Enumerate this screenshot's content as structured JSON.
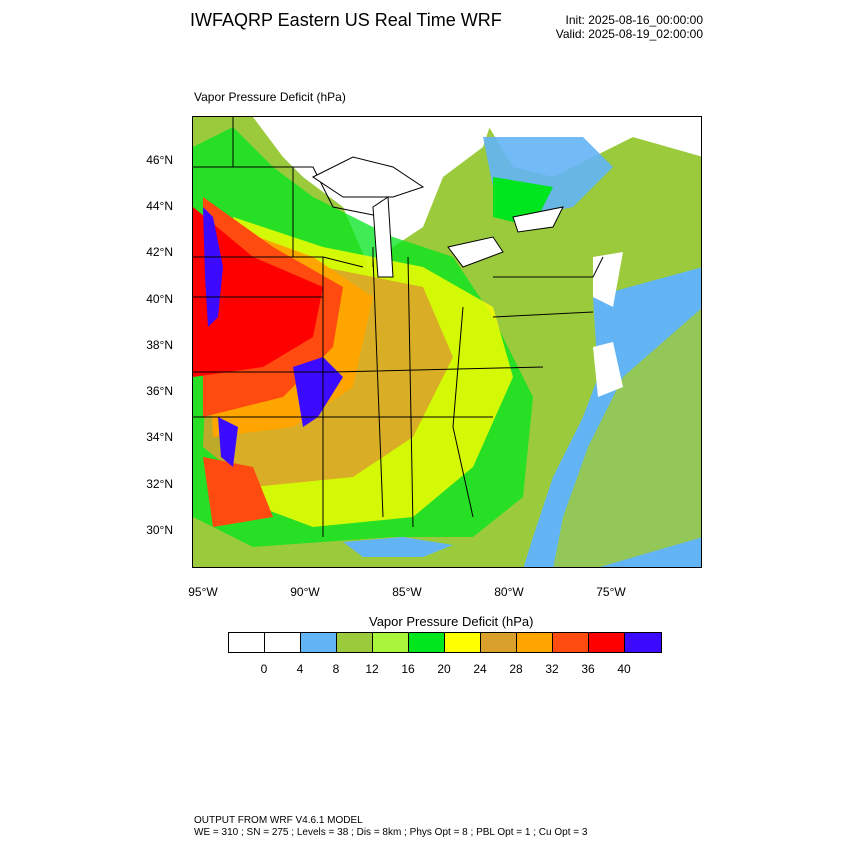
{
  "header": {
    "title": "IWFAQRP Eastern US Real Time WRF",
    "init": "Init: 2025-08-16_00:00:00",
    "valid": "Valid: 2025-08-19_02:00:00"
  },
  "map": {
    "field_label": "Vapor Pressure Deficit   (hPa)",
    "lat_labels": [
      "46°N",
      "44°N",
      "42°N",
      "40°N",
      "38°N",
      "36°N",
      "34°N",
      "32°N",
      "30°N"
    ],
    "lon_labels": [
      "95°W",
      "90°W",
      "85°W",
      "80°W",
      "75°W"
    ]
  },
  "colorbar": {
    "title": "Vapor Pressure Deficit  (hPa)",
    "colors": [
      "#ffffff",
      "#ffffff",
      "#63b4f5",
      "#9bcb3c",
      "#a8f53c",
      "#00e61e",
      "#ffff00",
      "#d9a12b",
      "#ffa500",
      "#ff4a10",
      "#ff0000",
      "#3c0aff"
    ],
    "labels": [
      "0",
      "4",
      "8",
      "12",
      "16",
      "20",
      "24",
      "28",
      "32",
      "36",
      "40"
    ]
  },
  "footer": {
    "line1": "OUTPUT FROM WRF V4.6.1 MODEL",
    "line2": "WE = 310 ; SN = 275 ; Levels = 38 ; Dis = 8km ; Phys Opt = 8 ; PBL Opt = 1 ; Cu Opt = 3"
  }
}
